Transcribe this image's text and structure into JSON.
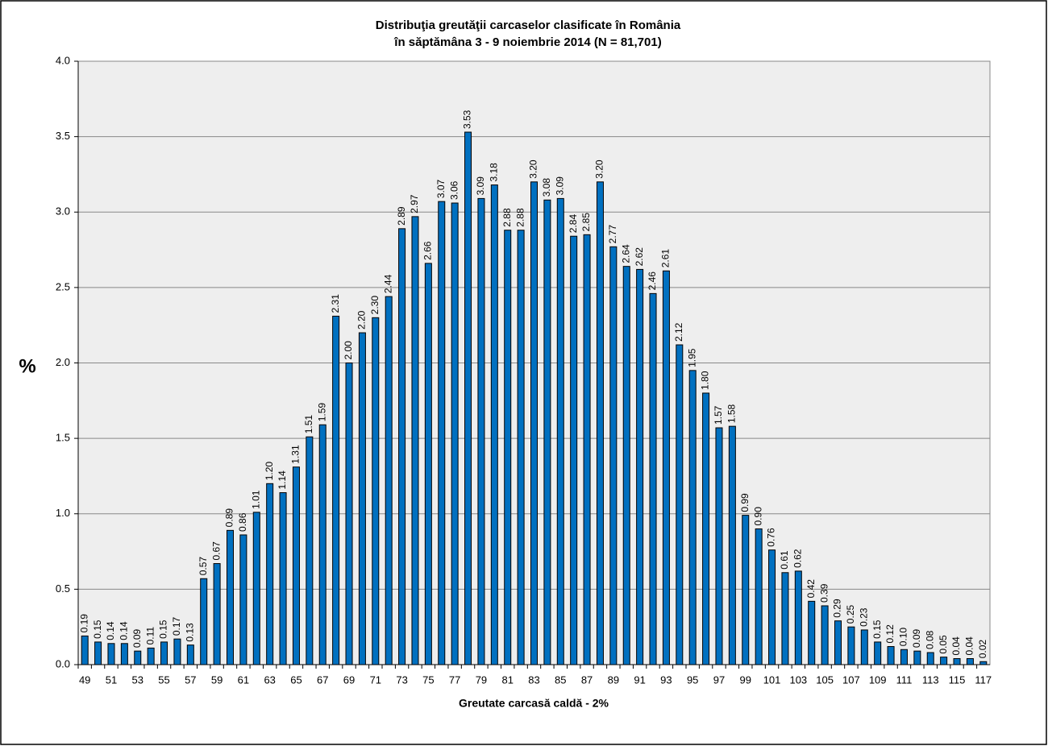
{
  "chart_data": {
    "type": "bar",
    "title": [
      "Distribuţia greutăţii carcaselor clasificate în România",
      "în săptămâna 3 - 9 noiembrie 2014 (N = 81,701)"
    ],
    "x_label": "Greutate  carcasă  caldă - 2%",
    "y_label": "%",
    "categories": [
      "49",
      null,
      "51",
      null,
      "53",
      null,
      "55",
      null,
      "57",
      null,
      "59",
      null,
      "61",
      null,
      "63",
      null,
      "65",
      null,
      "67",
      null,
      "69",
      null,
      "71",
      null,
      "73",
      null,
      "75",
      null,
      "77",
      null,
      "79",
      null,
      "81",
      null,
      "83",
      null,
      "85",
      null,
      "87",
      null,
      "89",
      null,
      "91",
      null,
      "93",
      null,
      "95",
      null,
      "97",
      null,
      "99",
      null,
      "101",
      null,
      "103",
      null,
      "105",
      null,
      "107",
      null,
      "109",
      null,
      "111",
      null,
      "113",
      null,
      "115",
      null,
      "117"
    ],
    "values": [
      0.19,
      0.15,
      0.14,
      0.14,
      0.09,
      0.11,
      0.15,
      0.17,
      0.13,
      0.57,
      0.67,
      0.89,
      0.86,
      1.01,
      1.2,
      1.14,
      1.31,
      1.51,
      1.59,
      2.31,
      2.0,
      2.2,
      2.3,
      2.44,
      2.89,
      2.97,
      2.66,
      3.07,
      3.06,
      3.53,
      3.09,
      3.18,
      2.88,
      2.88,
      3.2,
      3.08,
      3.09,
      2.84,
      2.85,
      3.2,
      2.77,
      2.64,
      2.62,
      2.46,
      2.61,
      2.12,
      1.95,
      1.8,
      1.57,
      1.58,
      0.99,
      0.9,
      0.76,
      0.61,
      0.62,
      0.42,
      0.39,
      0.29,
      0.25,
      0.23,
      0.15,
      0.12,
      0.1,
      0.09,
      0.08,
      0.05,
      0.04,
      0.04,
      0.02
    ],
    "value_labels": [
      "0.19",
      "0.15",
      "0.14",
      "0.14",
      "0.09",
      "0.11",
      "0.15",
      "0.17",
      "0.13",
      "0.57",
      "0.67",
      "0.89",
      "0.86",
      "1.01",
      "1.20",
      "1.14",
      "1.31",
      "1.51",
      "1.59",
      "2.31",
      "2.00",
      "2.20",
      "2.30",
      "2.44",
      "2.89",
      "2.97",
      "2.66",
      "3.07",
      "3.06",
      "3.53",
      "3.09",
      "3.18",
      "2.88",
      "2.88",
      "3.20",
      "3.08",
      "3.09",
      "2.84",
      "2.85",
      "3.20",
      "2.77",
      "2.64",
      "2.62",
      "2.46",
      "2.61",
      "2.12",
      "1.95",
      "1.80",
      "1.57",
      "1.58",
      "0.99",
      "0.90",
      "0.76",
      "0.61",
      "0.62",
      "0.42",
      "0.39",
      "0.29",
      "0.25",
      "0.23",
      "0.15",
      "0.12",
      "0.10",
      "0.09",
      "0.08",
      "0.05",
      "0.04",
      "0.04",
      "0.02"
    ],
    "color": "#0070c0",
    "ylim": [
      0,
      4
    ],
    "yticks": [
      {
        "value": 0,
        "label": "0.0"
      },
      {
        "value": 0.5,
        "label": "0.5"
      },
      {
        "value": 1,
        "label": "1.0"
      },
      {
        "value": 1.5,
        "label": "1.5"
      },
      {
        "value": 2,
        "label": "2.0"
      },
      {
        "value": 2.5,
        "label": "2.5"
      },
      {
        "value": 3,
        "label": "3.0"
      },
      {
        "value": 3.5,
        "label": "3.5"
      },
      {
        "value": 4,
        "label": "4.0"
      }
    ],
    "grid": true
  }
}
